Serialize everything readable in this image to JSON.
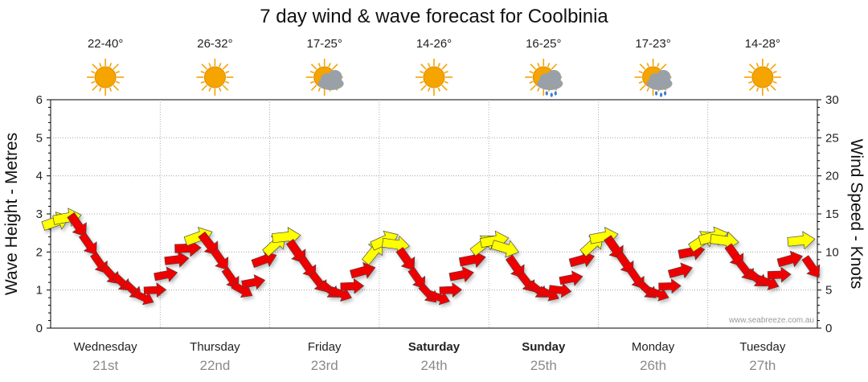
{
  "title": "7 day wind & wave forecast for Coolbinia",
  "left_axis_title": "Wave Height - Metres",
  "right_axis_title": "Wind Speed - Knots",
  "watermark": "www.seabreeze.com.au",
  "days": [
    {
      "name": "Wednesday",
      "date": "21st",
      "bold": false,
      "temp": "22-40°",
      "weather": "sunny"
    },
    {
      "name": "Thursday",
      "date": "22nd",
      "bold": false,
      "temp": "26-32°",
      "weather": "sunny"
    },
    {
      "name": "Friday",
      "date": "23rd",
      "bold": false,
      "temp": "17-25°",
      "weather": "partly-cloudy"
    },
    {
      "name": "Saturday",
      "date": "24th",
      "bold": true,
      "temp": "14-26°",
      "weather": "sunny"
    },
    {
      "name": "Sunday",
      "date": "25th",
      "bold": true,
      "temp": "16-25°",
      "weather": "showers"
    },
    {
      "name": "Monday",
      "date": "26th",
      "bold": false,
      "temp": "17-23°",
      "weather": "showers"
    },
    {
      "name": "Tuesday",
      "date": "27th",
      "bold": false,
      "temp": "14-28°",
      "weather": "sunny"
    }
  ],
  "colors": {
    "strong_wind": "#ee0000",
    "light_wind": "#ffff00",
    "sun": "#f5a400",
    "cloud": "#9aa0a8",
    "rain": "#3a7fd0",
    "grid": "#999999"
  },
  "chart_data": {
    "type": "line",
    "title": "7 day wind & wave forecast for Coolbinia",
    "ylabel": "Wave Height - Metres",
    "ylim": [
      0,
      6
    ],
    "yticks": [
      "0",
      "1",
      "2",
      "3",
      "4",
      "5",
      "6"
    ],
    "y2label": "Wind Speed - Knots",
    "y2lim": [
      0,
      30
    ],
    "y2ticks": [
      "0",
      "5",
      "10",
      "15",
      "20",
      "25",
      "30"
    ],
    "x_unit": "days from start of Wednesday 21st",
    "xlim": [
      0,
      7
    ],
    "grid": true,
    "series": [
      {
        "marker": "wind-arrow",
        "x": [
          0.0,
          0.1,
          0.2,
          0.3,
          0.4,
          0.5,
          0.6,
          0.7,
          0.8,
          0.9,
          1.0,
          1.1,
          1.2,
          1.3,
          1.4,
          1.5,
          1.6,
          1.7,
          1.8,
          1.9,
          2.0,
          2.1,
          2.2,
          2.3,
          2.4,
          2.5,
          2.6,
          2.7,
          2.8,
          2.9,
          3.0,
          3.1,
          3.2,
          3.3,
          3.4,
          3.5,
          3.6,
          3.7,
          3.8,
          3.9,
          4.0,
          4.1,
          4.2,
          4.3,
          4.4,
          4.5,
          4.6,
          4.7,
          4.8,
          4.9,
          5.0,
          5.1,
          5.2,
          5.3,
          5.4,
          5.5,
          5.6,
          5.7,
          5.8,
          5.9,
          6.0,
          6.1,
          6.2,
          6.3,
          6.4,
          6.5,
          6.6,
          6.7,
          6.8,
          6.9
        ],
        "values": [
          2.8,
          2.9,
          2.7,
          2.2,
          1.7,
          1.4,
          1.2,
          1.0,
          0.8,
          1.0,
          1.4,
          1.8,
          2.1,
          2.4,
          2.2,
          1.8,
          1.3,
          1.0,
          1.2,
          1.8,
          2.2,
          2.4,
          2.0,
          1.6,
          1.2,
          1.0,
          0.9,
          1.1,
          1.5,
          2.0,
          2.3,
          2.2,
          1.8,
          1.3,
          0.9,
          0.8,
          1.0,
          1.4,
          1.8,
          2.2,
          2.3,
          2.1,
          1.6,
          1.2,
          1.0,
          0.9,
          1.0,
          1.3,
          1.8,
          2.2,
          2.4,
          2.1,
          1.7,
          1.3,
          1.0,
          0.9,
          1.1,
          1.5,
          2.0,
          2.3,
          2.4,
          2.3,
          1.9,
          1.5,
          1.3,
          1.2,
          1.4,
          1.8,
          2.3,
          1.6
        ],
        "wind": [
          13,
          13,
          11,
          9,
          8,
          8,
          7,
          7,
          6,
          7,
          8,
          9,
          11,
          13,
          11,
          9,
          8,
          7,
          8,
          10,
          12,
          13,
          11,
          9,
          8,
          7,
          7,
          8,
          10,
          12,
          13,
          12,
          10,
          8,
          7,
          6,
          7,
          9,
          11,
          12,
          13,
          12,
          10,
          8,
          7,
          6,
          7,
          8,
          10,
          12,
          13,
          11,
          9,
          8,
          7,
          6,
          7,
          9,
          11,
          13,
          14,
          13,
          10,
          8,
          8,
          7,
          8,
          10,
          12,
          9
        ]
      }
    ]
  }
}
